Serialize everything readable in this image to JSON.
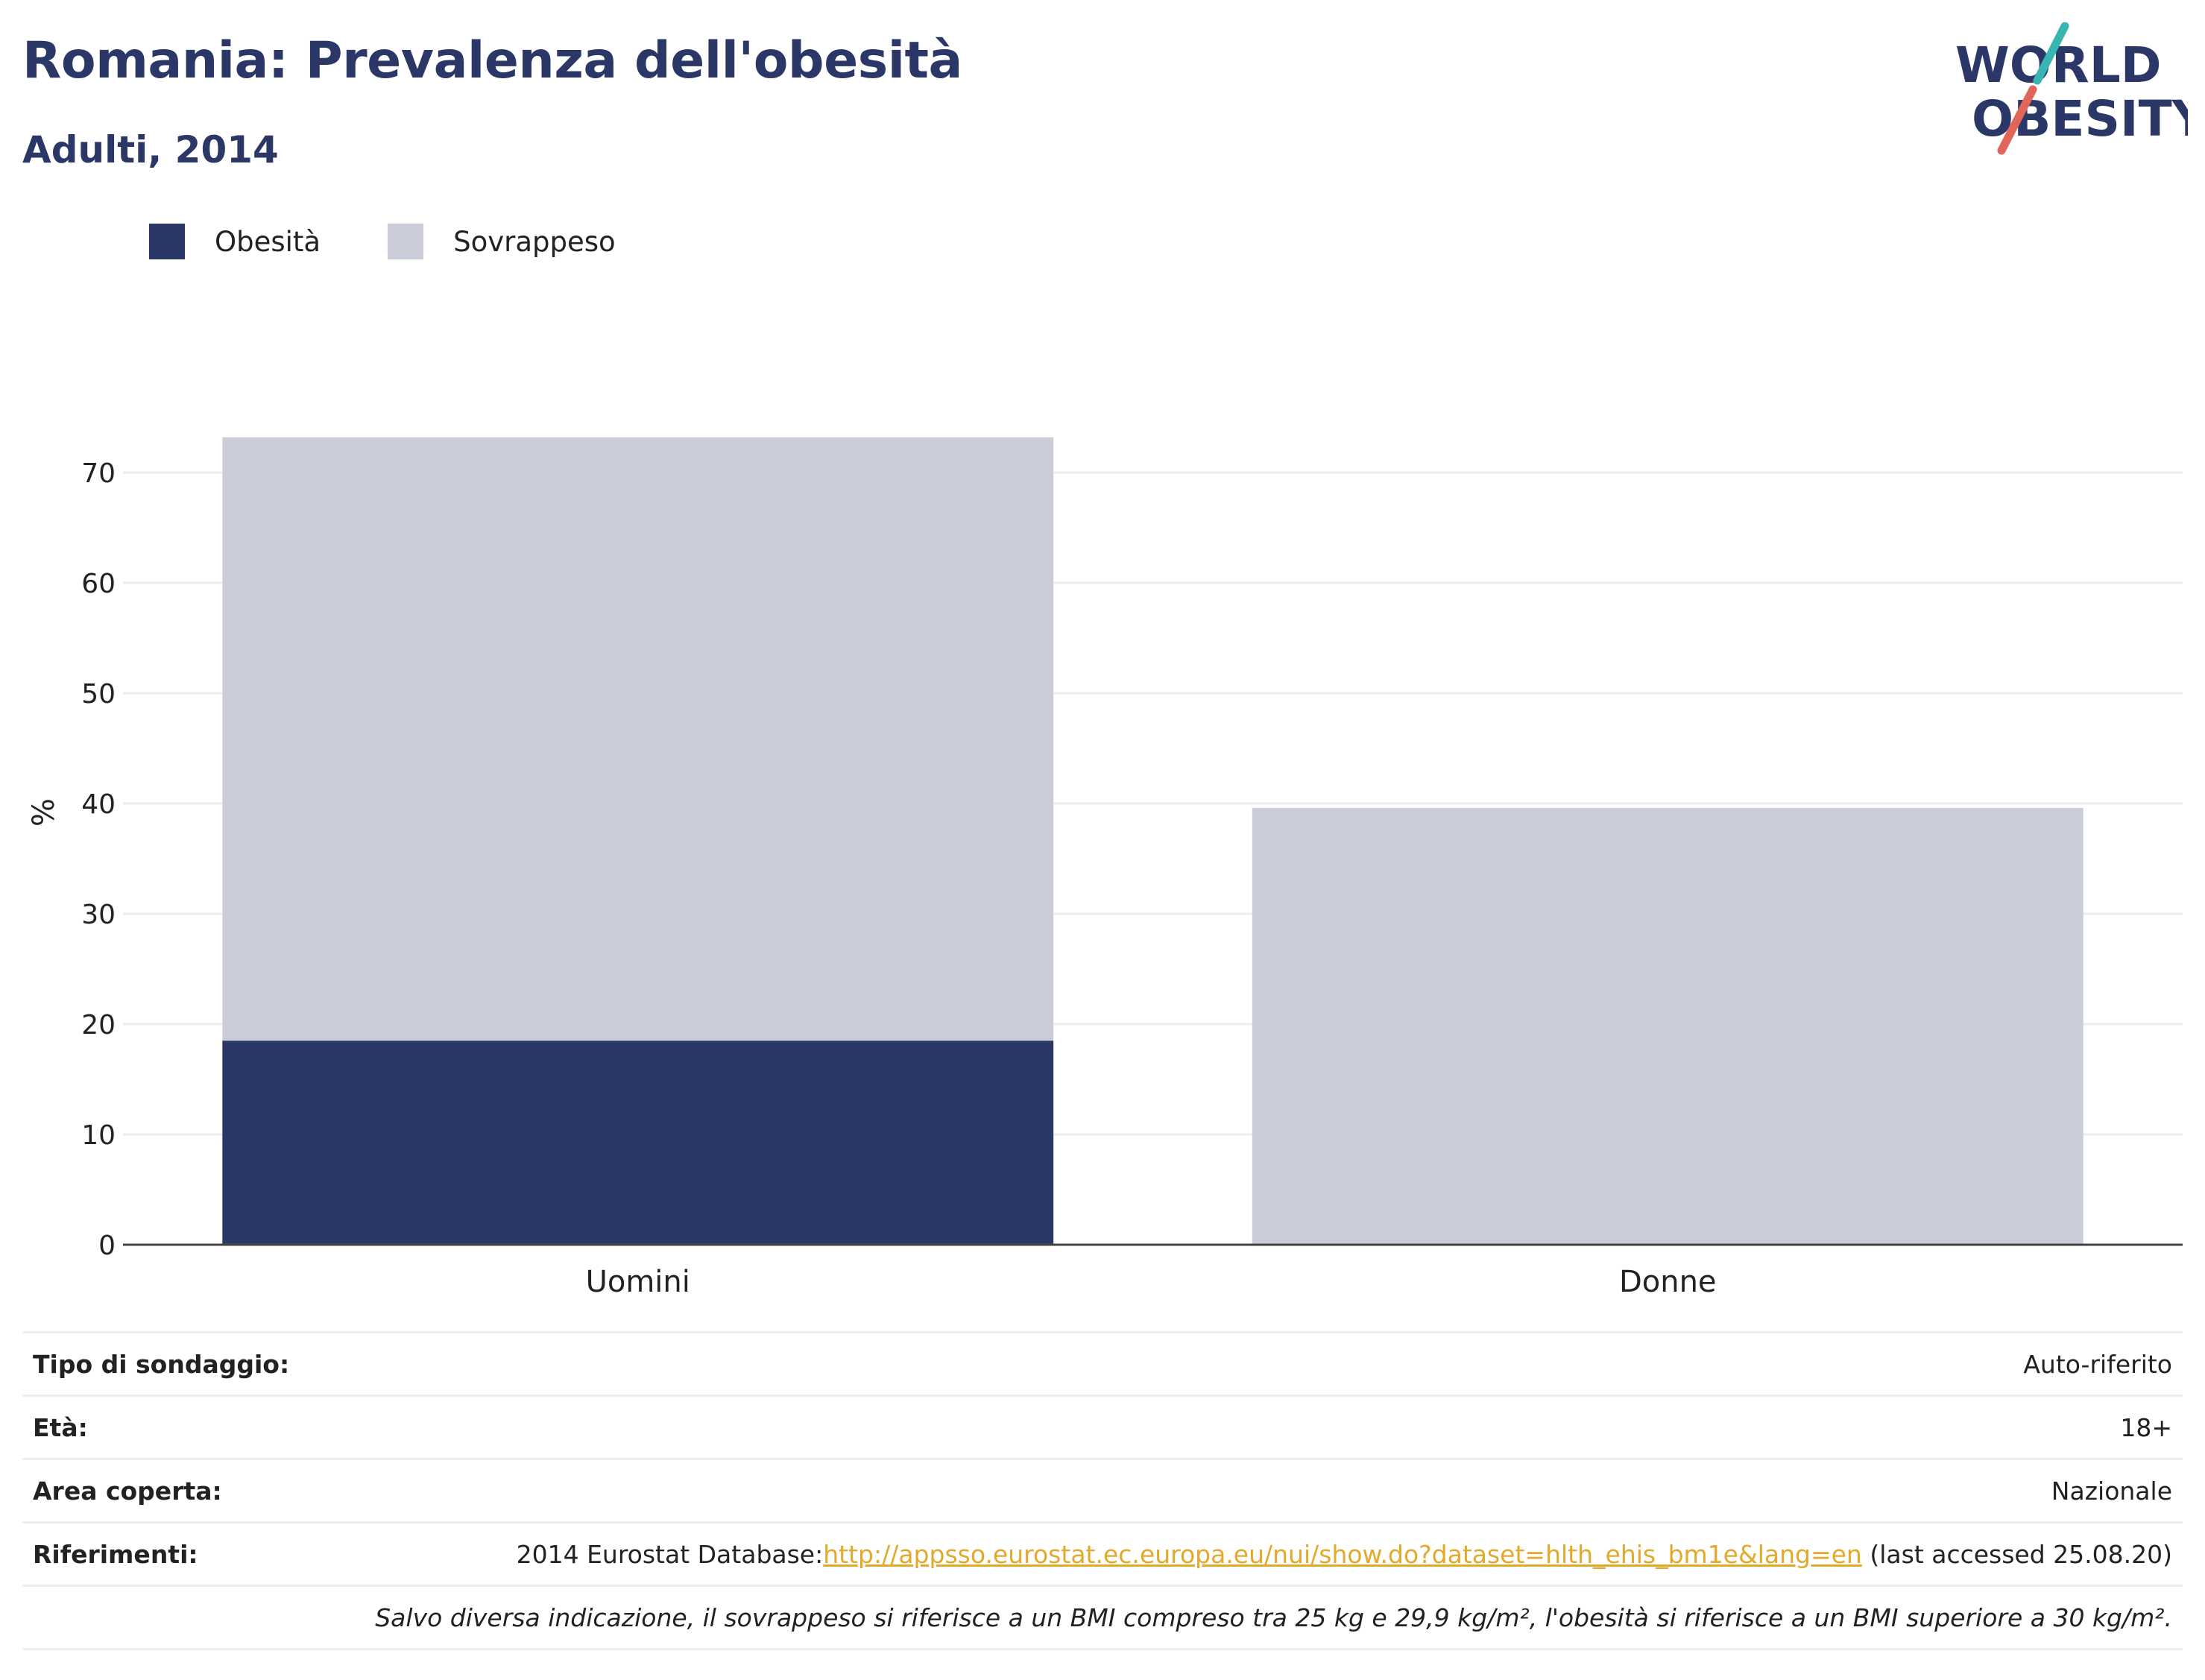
{
  "header": {
    "title": "Romania: Prevalenza dell'obesità",
    "subtitle": "Adulti, 2014",
    "logo": {
      "line1": "WORLD",
      "line2": "OBESITY",
      "accent_colors": [
        "#39b6b3",
        "#e1665a"
      ],
      "text_color": "#2b3766"
    }
  },
  "legend": {
    "items": [
      {
        "label": "Obesità",
        "color": "#2b3766"
      },
      {
        "label": "Sovrappeso",
        "color": "#cacdd9"
      }
    ]
  },
  "chart_data": {
    "type": "bar",
    "stacked": true,
    "categories": [
      "Uomini",
      "Donne"
    ],
    "series": [
      {
        "name": "Obesità",
        "color": "#2b3766",
        "values": [
          18.5,
          0
        ]
      },
      {
        "name": "Sovrappeso",
        "color": "#cacdd9",
        "values": [
          54.7,
          39.6
        ]
      }
    ],
    "ylabel": "%",
    "ylim": [
      0,
      75
    ],
    "yticks": [
      0,
      10,
      20,
      30,
      40,
      50,
      60,
      70
    ],
    "grid": true,
    "legend_position": "top-left"
  },
  "info": {
    "rows": [
      {
        "key": "Tipo di sondaggio:",
        "value": "Auto-riferito"
      },
      {
        "key": "Età:",
        "value": "18+"
      },
      {
        "key": "Area coperta:",
        "value": "Nazionale"
      }
    ],
    "references": {
      "key": "Riferimenti:",
      "prefix": "2014 Eurostat Database:",
      "link": "http://appsso.eurostat.ec.europa.eu/nui/show.do?dataset=hlth_ehis_bm1e&lang=en",
      "suffix": " (last accessed 25.08.20)"
    },
    "note": "Salvo diversa indicazione, il sovrappeso si riferisce a un BMI compreso tra 25 kg e 29,9 kg/m², l'obesità si riferisce a un BMI superiore a 30 kg/m²."
  }
}
